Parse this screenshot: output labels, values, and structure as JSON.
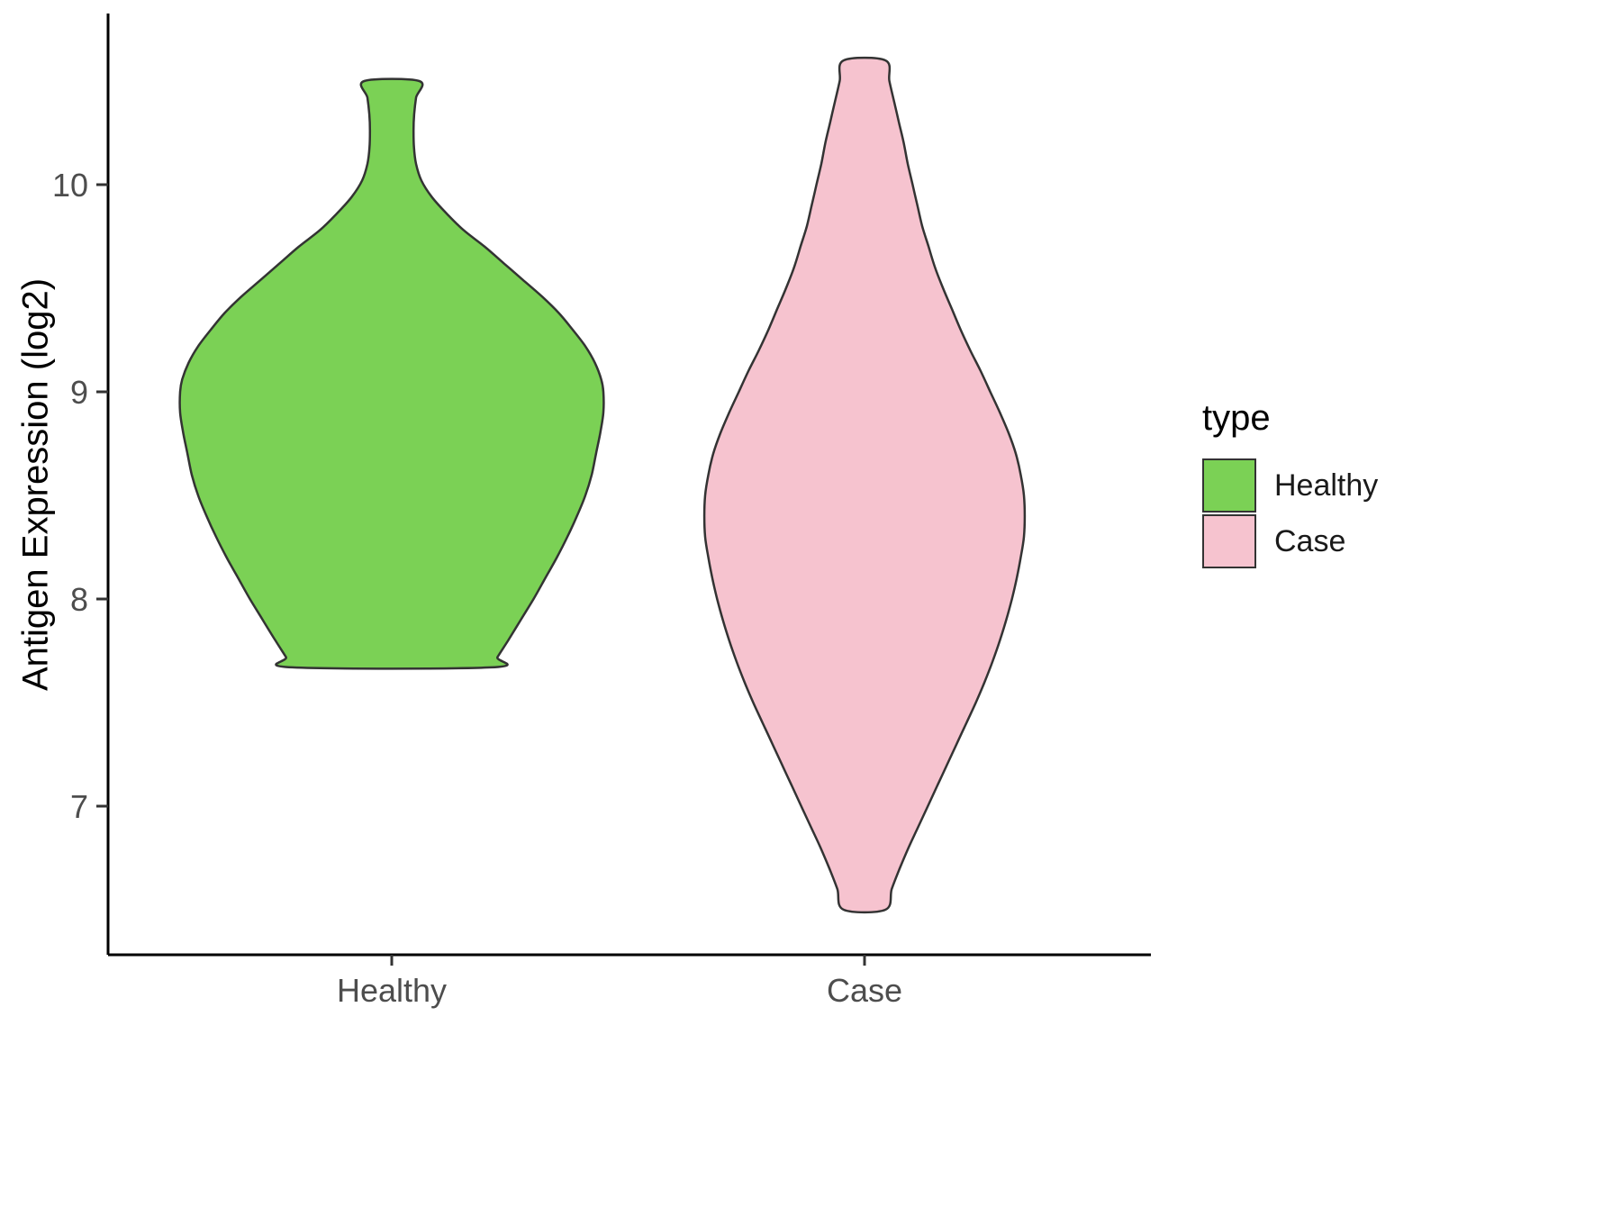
{
  "chart_data": {
    "type": "violin",
    "title": "",
    "xlabel": "",
    "ylabel": "Antigen Expression (log2)",
    "x_categories": [
      "Healthy",
      "Case"
    ],
    "y_ticks": [
      7,
      8,
      9,
      10
    ],
    "y_axis_range_shown": [
      6.28,
      10.83
    ],
    "grid": "off",
    "legend": {
      "title": "type",
      "position": "right",
      "entries": [
        {
          "label": "Healthy",
          "color": "#7bd155"
        },
        {
          "label": "Case",
          "color": "#f6c3cf"
        }
      ]
    },
    "series": [
      {
        "name": "Healthy",
        "fill": "#7bd155",
        "stroke": "#333333",
        "y_min": 7.67,
        "y_max": 10.5,
        "widest_at_y": 9.0,
        "relative_width": 1.0,
        "profile": [
          [
            10.5,
            0.13
          ],
          [
            10.42,
            0.115
          ],
          [
            10.34,
            0.106
          ],
          [
            10.26,
            0.103
          ],
          [
            10.18,
            0.105
          ],
          [
            10.1,
            0.115
          ],
          [
            10.02,
            0.14
          ],
          [
            9.94,
            0.19
          ],
          [
            9.86,
            0.26
          ],
          [
            9.78,
            0.34
          ],
          [
            9.7,
            0.44
          ],
          [
            9.62,
            0.53
          ],
          [
            9.54,
            0.62
          ],
          [
            9.46,
            0.71
          ],
          [
            9.38,
            0.79
          ],
          [
            9.3,
            0.855
          ],
          [
            9.22,
            0.915
          ],
          [
            9.14,
            0.96
          ],
          [
            9.06,
            0.99
          ],
          [
            9.0,
            1.0
          ],
          [
            8.9,
            1.0
          ],
          [
            8.8,
            0.985
          ],
          [
            8.7,
            0.965
          ],
          [
            8.6,
            0.945
          ],
          [
            8.5,
            0.915
          ],
          [
            8.4,
            0.875
          ],
          [
            8.3,
            0.83
          ],
          [
            8.2,
            0.78
          ],
          [
            8.1,
            0.725
          ],
          [
            8.0,
            0.67
          ],
          [
            7.9,
            0.61
          ],
          [
            7.8,
            0.55
          ],
          [
            7.72,
            0.5
          ],
          [
            7.67,
            0.47
          ]
        ]
      },
      {
        "name": "Case",
        "fill": "#f6c3cf",
        "stroke": "#333333",
        "y_min": 6.5,
        "y_max": 10.6,
        "widest_at_y": 8.4,
        "relative_width": 0.757,
        "profile": [
          [
            10.6,
            0.13
          ],
          [
            10.5,
            0.155
          ],
          [
            10.4,
            0.185
          ],
          [
            10.3,
            0.215
          ],
          [
            10.2,
            0.245
          ],
          [
            10.1,
            0.27
          ],
          [
            10.0,
            0.3
          ],
          [
            9.9,
            0.33
          ],
          [
            9.8,
            0.36
          ],
          [
            9.7,
            0.4
          ],
          [
            9.6,
            0.44
          ],
          [
            9.5,
            0.49
          ],
          [
            9.4,
            0.545
          ],
          [
            9.3,
            0.6
          ],
          [
            9.2,
            0.66
          ],
          [
            9.1,
            0.725
          ],
          [
            9.0,
            0.785
          ],
          [
            8.9,
            0.845
          ],
          [
            8.8,
            0.9
          ],
          [
            8.7,
            0.945
          ],
          [
            8.6,
            0.975
          ],
          [
            8.5,
            0.995
          ],
          [
            8.4,
            1.0
          ],
          [
            8.3,
            0.995
          ],
          [
            8.2,
            0.975
          ],
          [
            8.1,
            0.95
          ],
          [
            8.0,
            0.92
          ],
          [
            7.9,
            0.885
          ],
          [
            7.8,
            0.845
          ],
          [
            7.7,
            0.8
          ],
          [
            7.6,
            0.75
          ],
          [
            7.5,
            0.695
          ],
          [
            7.4,
            0.635
          ],
          [
            7.3,
            0.575
          ],
          [
            7.2,
            0.515
          ],
          [
            7.1,
            0.455
          ],
          [
            7.0,
            0.395
          ],
          [
            6.9,
            0.335
          ],
          [
            6.8,
            0.275
          ],
          [
            6.7,
            0.22
          ],
          [
            6.6,
            0.17
          ],
          [
            6.5,
            0.13
          ]
        ]
      }
    ]
  }
}
